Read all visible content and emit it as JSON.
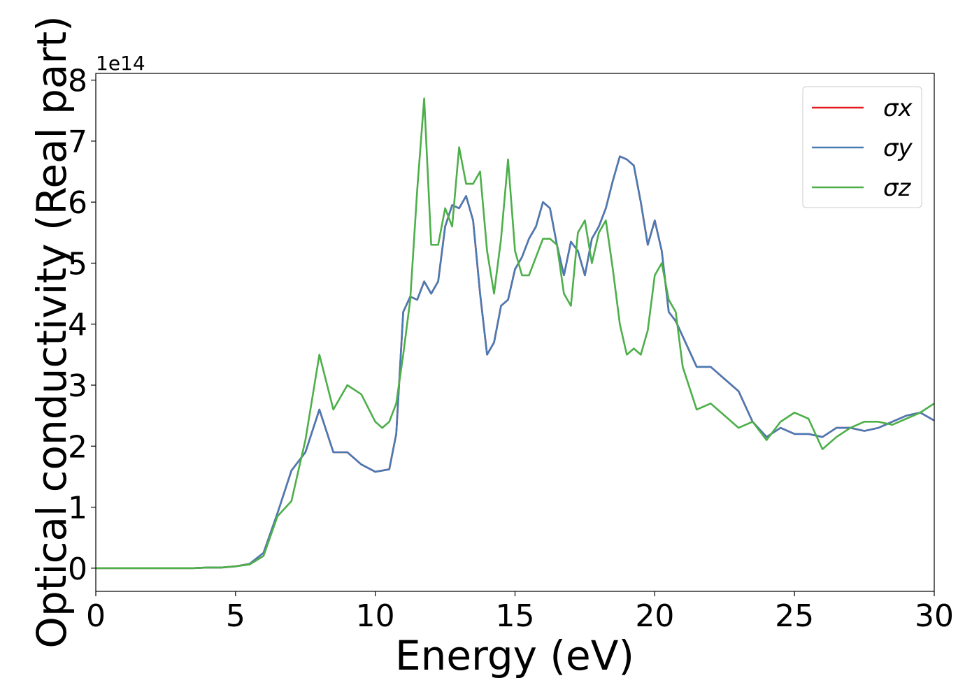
{
  "chart_data": {
    "type": "line",
    "xlabel": "Energy (eV)",
    "ylabel": "Optical conductivity (Real part)",
    "y_offset_label": "1e14",
    "x": [
      0,
      0.5,
      1,
      1.5,
      2,
      2.5,
      3,
      3.5,
      4,
      4.5,
      5,
      5.5,
      6,
      6.5,
      7,
      7.5,
      8,
      8.5,
      9,
      9.5,
      10,
      10.25,
      10.5,
      10.75,
      11,
      11.25,
      11.5,
      11.75,
      12,
      12.25,
      12.5,
      12.75,
      13,
      13.25,
      13.5,
      13.75,
      14,
      14.25,
      14.5,
      14.75,
      15,
      15.25,
      15.5,
      15.75,
      16,
      16.25,
      16.5,
      16.75,
      17,
      17.25,
      17.5,
      17.75,
      18,
      18.25,
      18.5,
      18.75,
      19,
      19.25,
      19.5,
      19.75,
      20,
      20.25,
      20.5,
      20.75,
      21,
      21.5,
      22,
      22.5,
      23,
      23.5,
      24,
      24.5,
      25,
      25.5,
      26,
      26.5,
      27,
      27.5,
      28,
      28.5,
      29,
      29.5,
      30
    ],
    "series": [
      {
        "name": "σx",
        "color": "#e41a1c",
        "values": [
          0,
          0,
          0,
          0,
          0,
          0,
          0,
          0,
          0.01,
          0.01,
          0.03,
          0.07,
          0.25,
          0.9,
          1.6,
          1.9,
          2.6,
          1.9,
          1.9,
          1.7,
          1.58,
          1.6,
          1.62,
          2.2,
          4.2,
          4.45,
          4.4,
          4.7,
          4.5,
          4.7,
          5.6,
          5.95,
          5.9,
          6.1,
          5.7,
          4.5,
          3.5,
          3.7,
          4.3,
          4.4,
          4.9,
          5.1,
          5.4,
          5.6,
          6.0,
          5.9,
          5.3,
          4.8,
          5.35,
          5.2,
          4.8,
          5.4,
          5.6,
          5.9,
          6.35,
          6.75,
          6.7,
          6.6,
          6.0,
          5.3,
          5.7,
          5.2,
          4.2,
          4.05,
          3.8,
          3.3,
          3.3,
          3.1,
          2.9,
          2.4,
          2.15,
          2.3,
          2.2,
          2.2,
          2.15,
          2.3,
          2.3,
          2.25,
          2.3,
          2.4,
          2.5,
          2.55,
          2.42
        ]
      },
      {
        "name": "σy",
        "color": "#4a7ab4",
        "values": [
          0,
          0,
          0,
          0,
          0,
          0,
          0,
          0,
          0.01,
          0.01,
          0.03,
          0.07,
          0.25,
          0.9,
          1.6,
          1.9,
          2.6,
          1.9,
          1.9,
          1.7,
          1.58,
          1.6,
          1.62,
          2.2,
          4.2,
          4.45,
          4.4,
          4.7,
          4.5,
          4.7,
          5.6,
          5.95,
          5.9,
          6.1,
          5.7,
          4.5,
          3.5,
          3.7,
          4.3,
          4.4,
          4.9,
          5.1,
          5.4,
          5.6,
          6.0,
          5.9,
          5.3,
          4.8,
          5.35,
          5.2,
          4.8,
          5.4,
          5.6,
          5.9,
          6.35,
          6.75,
          6.7,
          6.6,
          6.0,
          5.3,
          5.7,
          5.2,
          4.2,
          4.05,
          3.8,
          3.3,
          3.3,
          3.1,
          2.9,
          2.4,
          2.15,
          2.3,
          2.2,
          2.2,
          2.15,
          2.3,
          2.3,
          2.25,
          2.3,
          2.4,
          2.5,
          2.55,
          2.42
        ]
      },
      {
        "name": "σz",
        "color": "#4daf4a",
        "values": [
          0,
          0,
          0,
          0,
          0,
          0,
          0,
          0,
          0.01,
          0.01,
          0.03,
          0.06,
          0.2,
          0.85,
          1.1,
          2.1,
          3.5,
          2.6,
          3.0,
          2.85,
          2.4,
          2.3,
          2.4,
          2.7,
          3.5,
          4.4,
          6.2,
          7.7,
          5.3,
          5.3,
          5.9,
          5.6,
          6.9,
          6.3,
          6.3,
          6.5,
          5.2,
          4.5,
          5.4,
          6.7,
          5.2,
          4.8,
          4.8,
          5.1,
          5.4,
          5.4,
          5.3,
          4.5,
          4.3,
          5.5,
          5.7,
          5.0,
          5.5,
          5.7,
          4.9,
          4.0,
          3.5,
          3.6,
          3.5,
          3.9,
          4.8,
          5.0,
          4.4,
          4.2,
          3.3,
          2.6,
          2.7,
          2.5,
          2.3,
          2.4,
          2.1,
          2.4,
          2.55,
          2.45,
          1.95,
          2.15,
          2.3,
          2.4,
          2.4,
          2.35,
          2.45,
          2.55,
          2.7
        ]
      }
    ],
    "xlim": [
      0,
      30
    ],
    "xticks": [
      0,
      5,
      10,
      15,
      20,
      25,
      30
    ],
    "ylim": [
      -0.38,
      8.11
    ],
    "yticks": [
      0,
      1,
      2,
      3,
      4,
      5,
      6,
      7,
      8
    ],
    "grid": false,
    "legend": "upper right"
  }
}
